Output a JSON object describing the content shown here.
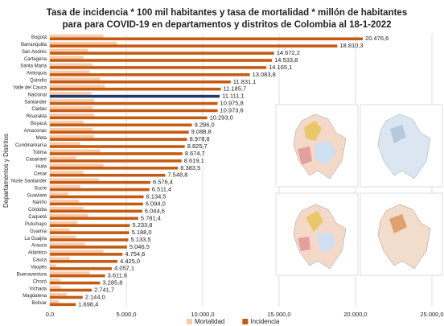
{
  "chart_data": {
    "type": "bar",
    "orientation": "horizontal",
    "title": "Tasa de incidencia * 100 mil habitantes y tasa de mortalidad * millón de habitantes",
    "subtitle": "para para COVID-19 en departamentos y distritos de Colombia al 18-1-2022",
    "ylabel": "Departamentos y Distritos",
    "categories": [
      "Bogotá",
      "Barranquilla",
      "San Andrés",
      "Cartagena",
      "Santa Marta",
      "Antioquia",
      "Quindío",
      "Valle del Cauca",
      "Nacional",
      "Santander",
      "Caldas",
      "Risaralda",
      "Boyacá",
      "Amazonas",
      "Meta",
      "Cundinamarca",
      "Tolima",
      "Casanare",
      "Huila",
      "Cesar",
      "Norte Santander",
      "Sucre",
      "Guaviare",
      "Nariño",
      "Córdoba",
      "Caquetá",
      "Putumayo",
      "Guainía",
      "La Guajira",
      "Arauca",
      "Atlántico",
      "Cauca",
      "Vaupés",
      "Buenaventura",
      "Chocó",
      "Vichada",
      "Magdalena",
      "Bolívar"
    ],
    "series": [
      {
        "name": "Mortalidad",
        "color": "#f8cbad",
        "values": [
          3500,
          4400,
          2500,
          2200,
          2800,
          2600,
          3300,
          3600,
          2700,
          2900,
          2800,
          2900,
          2200,
          2800,
          2900,
          2000,
          3300,
          1700,
          3500,
          2200,
          3200,
          2000,
          1200,
          1900,
          2200,
          2500,
          1800,
          1300,
          1700,
          2300,
          3500,
          1300,
          400,
          2600,
          700,
          700,
          1100,
          600
        ]
      },
      {
        "name": "Incidencia",
        "color": "#c55a11",
        "highlight_category": "Nacional",
        "highlight_color": "#1f3864",
        "values": [
          20476.6,
          18810.3,
          14672.2,
          14533.8,
          14165.1,
          13083.8,
          11831.1,
          11185.7,
          11111.1,
          10975.8,
          10973.6,
          10293.0,
          9296.0,
          9088.8,
          8978.8,
          8825.7,
          8674.7,
          8619.1,
          8383.5,
          7548.8,
          6576.4,
          6511.4,
          6134.5,
          6094.0,
          6044.6,
          5781.4,
          5233.8,
          5188.0,
          5133.5,
          5046.5,
          4754.6,
          4425.0,
          4057.1,
          3611.6,
          3285.8,
          2741.7,
          2144.0,
          1698.4
        ],
        "value_labels": [
          "20.476,6",
          "18.810,3",
          "14.672,2",
          "14.533,8",
          "14.165,1",
          "13.083,8",
          "11.831,1",
          "11.185,7",
          "11.111,1",
          "10.975,8",
          "10.973,6",
          "10.293,0",
          "9.296,0",
          "9.088,8",
          "8.978,8",
          "8.825,7",
          "8.674,7",
          "8.619,1",
          "8.383,5",
          "7.548,8",
          "6.576,4",
          "6.511,4",
          "6.134,5",
          "6.094,0",
          "6.044,6",
          "5.781,4",
          "5.233,8",
          "5.188,0",
          "5.133,5",
          "5.046,5",
          "4.754,6",
          "4.425,0",
          "4.057,1",
          "3.611,6",
          "3.285,8",
          "2.741,7",
          "2.144,0",
          "1.698,4"
        ]
      }
    ],
    "xlim": [
      0,
      25000
    ],
    "xticks": [
      {
        "value": 0,
        "label": "0,0"
      },
      {
        "value": 5000,
        "label": "5.000,0"
      },
      {
        "value": 10000,
        "label": "10.000,0"
      },
      {
        "value": 15000,
        "label": "15.000,0"
      },
      {
        "value": 20000,
        "label": "20.000,0"
      },
      {
        "value": 25000,
        "label": "25.000,0"
      }
    ],
    "grid": true,
    "legend": "bottom"
  }
}
